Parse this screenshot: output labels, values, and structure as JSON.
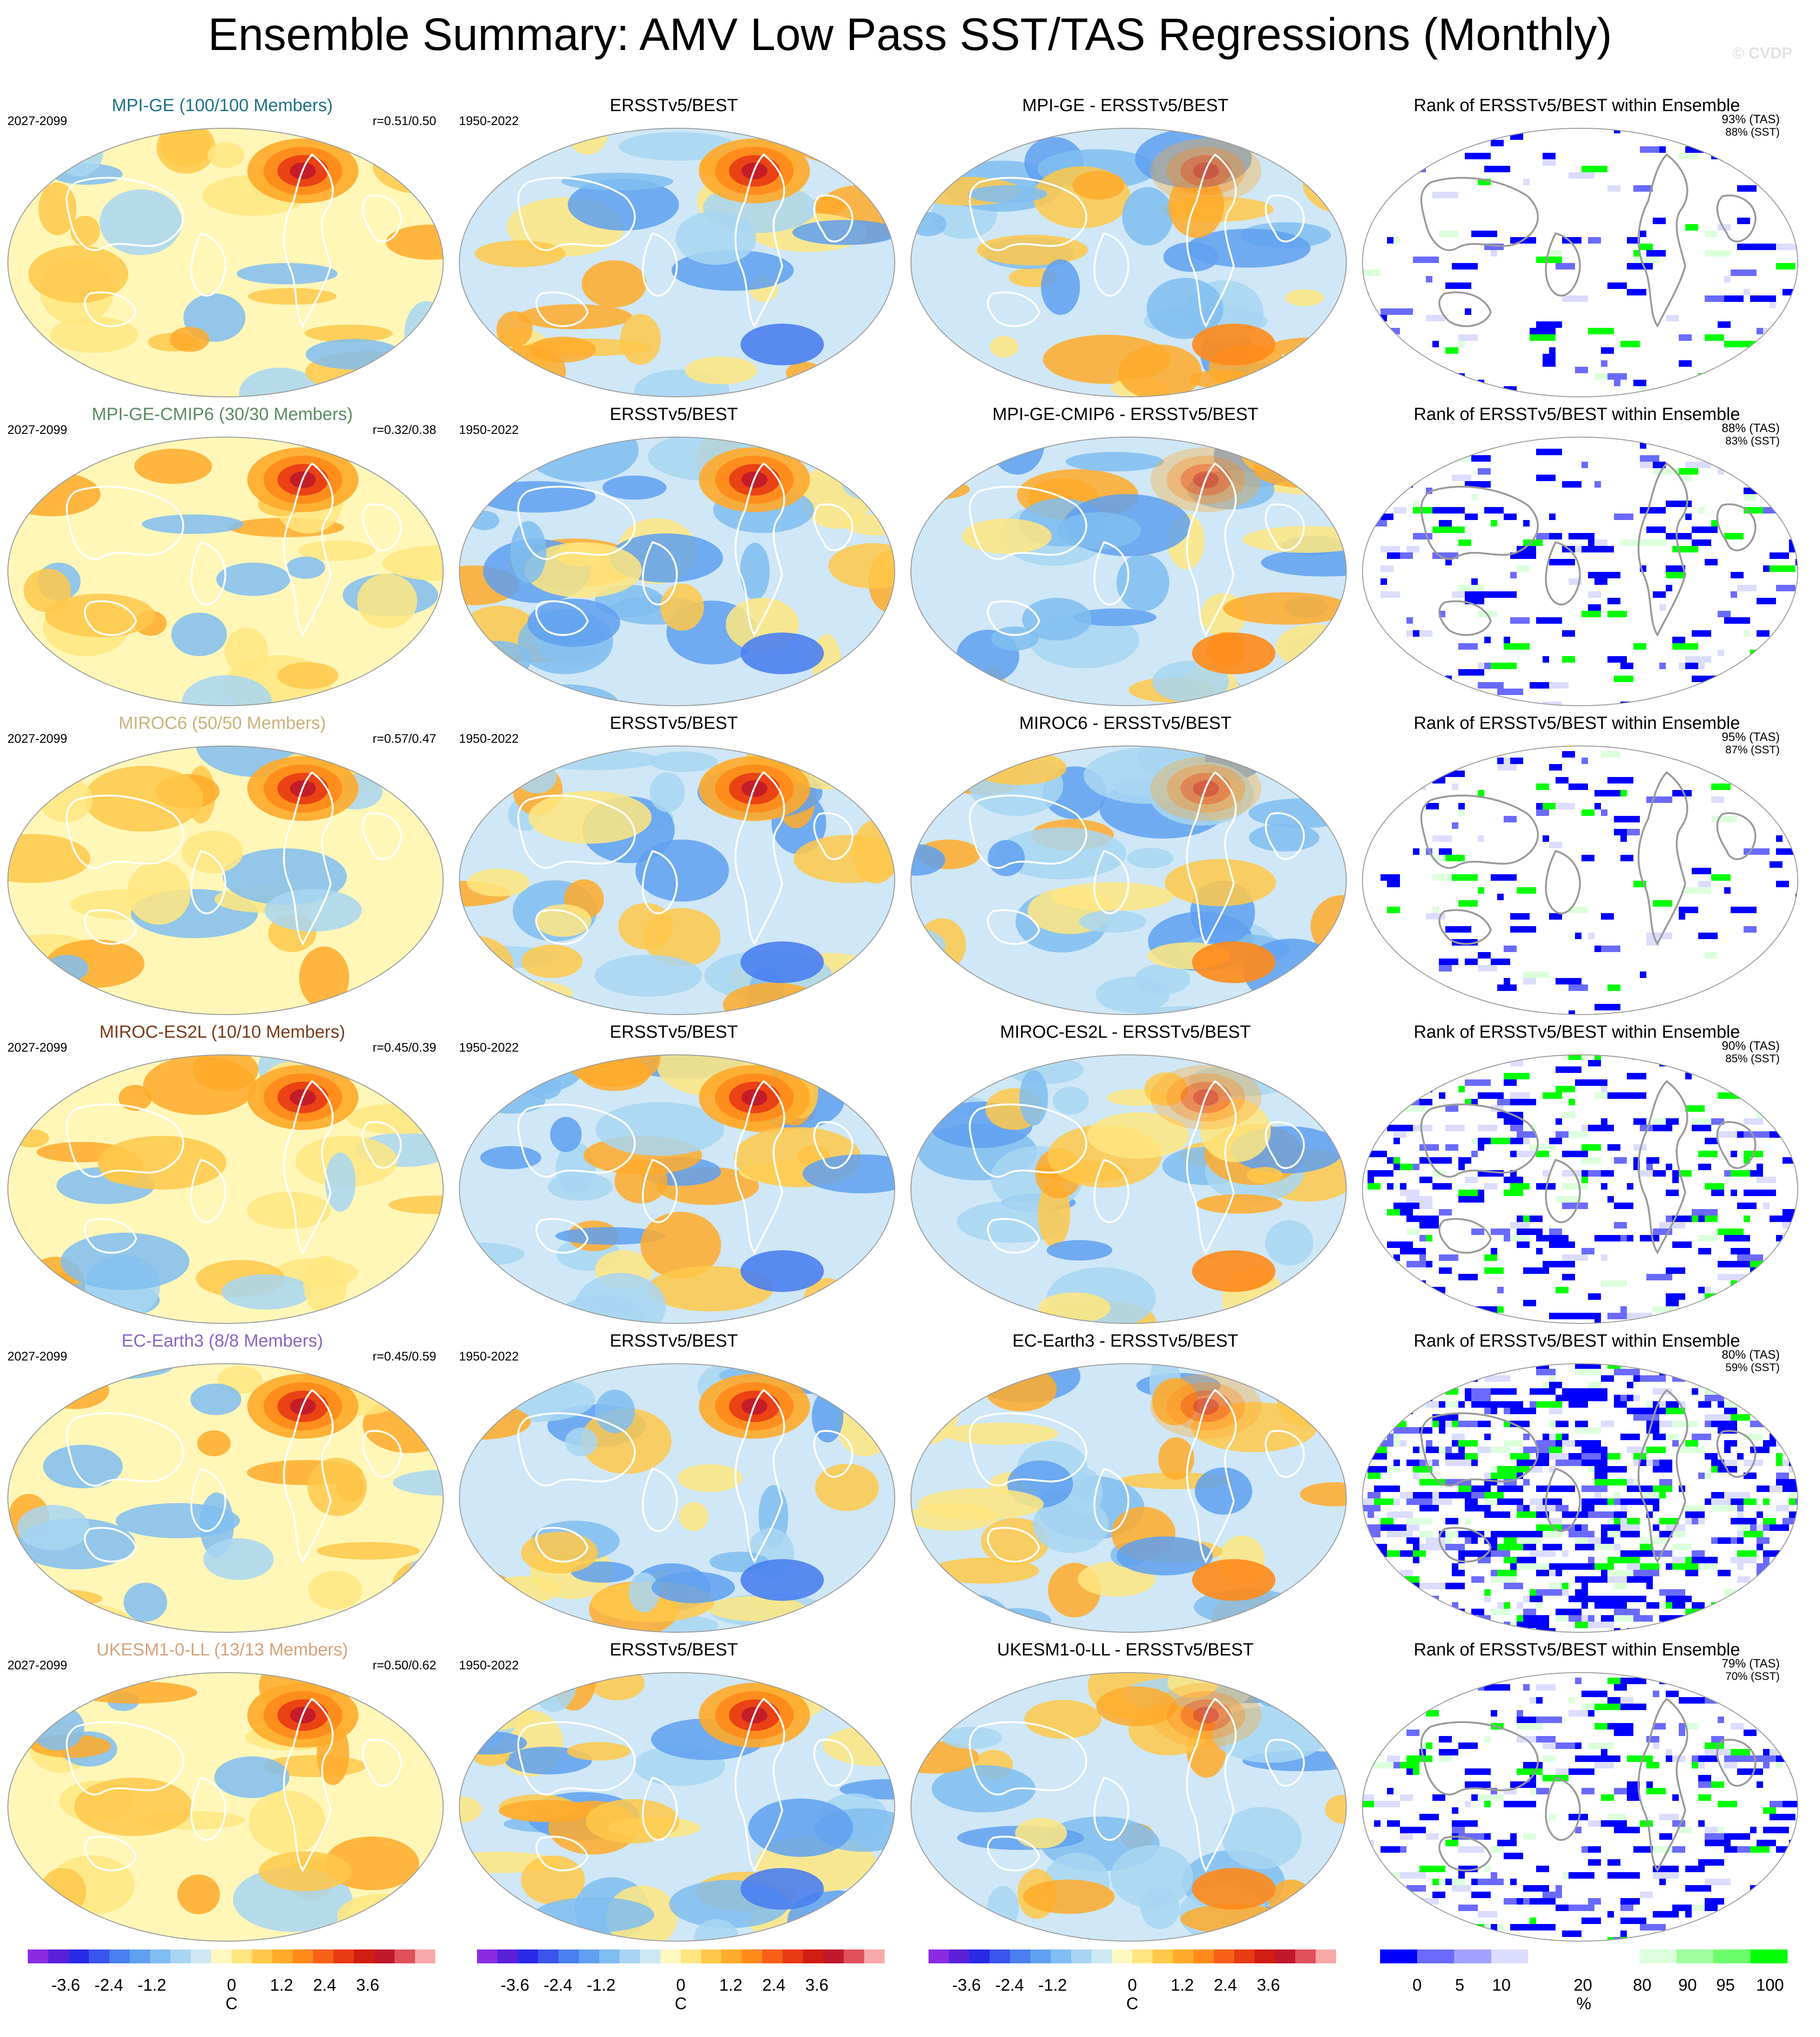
{
  "title": "Ensemble Summary: AMV Low Pass SST/TAS Regressions (Monthly)",
  "watermark": "© CVDP",
  "rows": [
    {
      "model_title": "MPI-GE (100/100 Members)",
      "title_color": "#1f7187",
      "period": "2027-2099",
      "corr": "r=0.51/0.50",
      "obs_title": "ERSSTv5/BEST",
      "obs_period": "1950-2022",
      "diff_title": "MPI-GE - ERSSTv5/BEST",
      "rank_title": "Rank of ERSSTv5/BEST within Ensemble",
      "rank_tas": "93% (TAS)",
      "rank_sst": "88% (SST)"
    },
    {
      "model_title": "MPI-GE-CMIP6 (30/30 Members)",
      "title_color": "#5c8a66",
      "period": "2027-2099",
      "corr": "r=0.32/0.38",
      "obs_title": "ERSSTv5/BEST",
      "obs_period": "1950-2022",
      "diff_title": "MPI-GE-CMIP6 - ERSSTv5/BEST",
      "rank_title": "Rank of ERSSTv5/BEST within Ensemble",
      "rank_tas": "88% (TAS)",
      "rank_sst": "83% (SST)"
    },
    {
      "model_title": "MIROC6 (50/50 Members)",
      "title_color": "#c9b27a",
      "period": "2027-2099",
      "corr": "r=0.57/0.47",
      "obs_title": "ERSSTv5/BEST",
      "obs_period": "1950-2022",
      "diff_title": "MIROC6 - ERSSTv5/BEST",
      "rank_title": "Rank of ERSSTv5/BEST within Ensemble",
      "rank_tas": "95% (TAS)",
      "rank_sst": "87% (SST)"
    },
    {
      "model_title": "MIROC-ES2L (10/10 Members)",
      "title_color": "#7a3b1c",
      "period": "2027-2099",
      "corr": "r=0.45/0.39",
      "obs_title": "ERSSTv5/BEST",
      "obs_period": "1950-2022",
      "diff_title": "MIROC-ES2L - ERSSTv5/BEST",
      "rank_title": "Rank of ERSSTv5/BEST within Ensemble",
      "rank_tas": "90% (TAS)",
      "rank_sst": "85% (SST)"
    },
    {
      "model_title": "EC-Earth3 (8/8 Members)",
      "title_color": "#8a66c2",
      "period": "2027-2099",
      "corr": "r=0.45/0.59",
      "obs_title": "ERSSTv5/BEST",
      "obs_period": "1950-2022",
      "diff_title": "EC-Earth3 - ERSSTv5/BEST",
      "rank_title": "Rank of ERSSTv5/BEST within Ensemble",
      "rank_tas": "80% (TAS)",
      "rank_sst": "59% (SST)"
    },
    {
      "model_title": "UKESM1-0-LL (13/13 Members)",
      "title_color": "#d6a27a",
      "period": "2027-2099",
      "corr": "r=0.50/0.62",
      "obs_title": "ERSSTv5/BEST",
      "obs_period": "1950-2022",
      "diff_title": "UKESM1-0-LL - ERSSTv5/BEST",
      "rank_title": "Rank of ERSSTv5/BEST within Ensemble",
      "rank_tas": "79% (TAS)",
      "rank_sst": "70% (SST)"
    }
  ],
  "colorbars": {
    "regression": {
      "unit": "C",
      "ticks": [
        "-3.6",
        "-2.4",
        "-1.2",
        "0",
        "1.2",
        "2.4",
        "3.6"
      ],
      "colors": [
        "#8a2be2",
        "#5a20d8",
        "#2a2ae6",
        "#3a55ee",
        "#4a7ff0",
        "#5fa0f0",
        "#80bdf0",
        "#a8d6f2",
        "#cde8f4",
        "#fff8c0",
        "#ffe680",
        "#ffc84a",
        "#ffaa2a",
        "#ff8a1a",
        "#f86018",
        "#e83a14",
        "#d01e12",
        "#c0182a",
        "#e0505a",
        "#f8a8a8"
      ]
    },
    "rank": {
      "unit": "%",
      "ticks": [
        "0",
        "5",
        "10",
        "20",
        "80",
        "90",
        "95",
        "100"
      ],
      "colors": [
        "#0000ff",
        "#6a6aff",
        "#a0a0ff",
        "#dcdcff",
        "#ffffff",
        "#ffffff",
        "#ffffff",
        "#dcffdc",
        "#a0ffa0",
        "#6aff6a",
        "#00ff00"
      ]
    }
  },
  "chart_data": {
    "type": "heatmap",
    "description_kind": "global regression maps",
    "rows": [
      "MPI-GE",
      "MPI-GE-CMIP6",
      "MIROC6",
      "MIROC-ES2L",
      "EC-Earth3",
      "UKESM1-0-LL"
    ],
    "columns": [
      "model",
      "ERSSTv5/BEST",
      "model - ERSSTv5/BEST",
      "Rank of ERSSTv5/BEST within Ensemble"
    ],
    "pattern_correlation": [
      [
        0.51,
        0.5
      ],
      [
        0.32,
        0.38
      ],
      [
        0.57,
        0.47
      ],
      [
        0.45,
        0.39
      ],
      [
        0.45,
        0.59
      ],
      [
        0.5,
        0.62
      ]
    ],
    "rank_percent_tas": [
      93,
      88,
      95,
      90,
      80,
      79
    ],
    "rank_percent_sst": [
      88,
      83,
      87,
      85,
      59,
      70
    ],
    "regression_range": [
      -4.2,
      4.2
    ],
    "regression_unit": "C"
  }
}
